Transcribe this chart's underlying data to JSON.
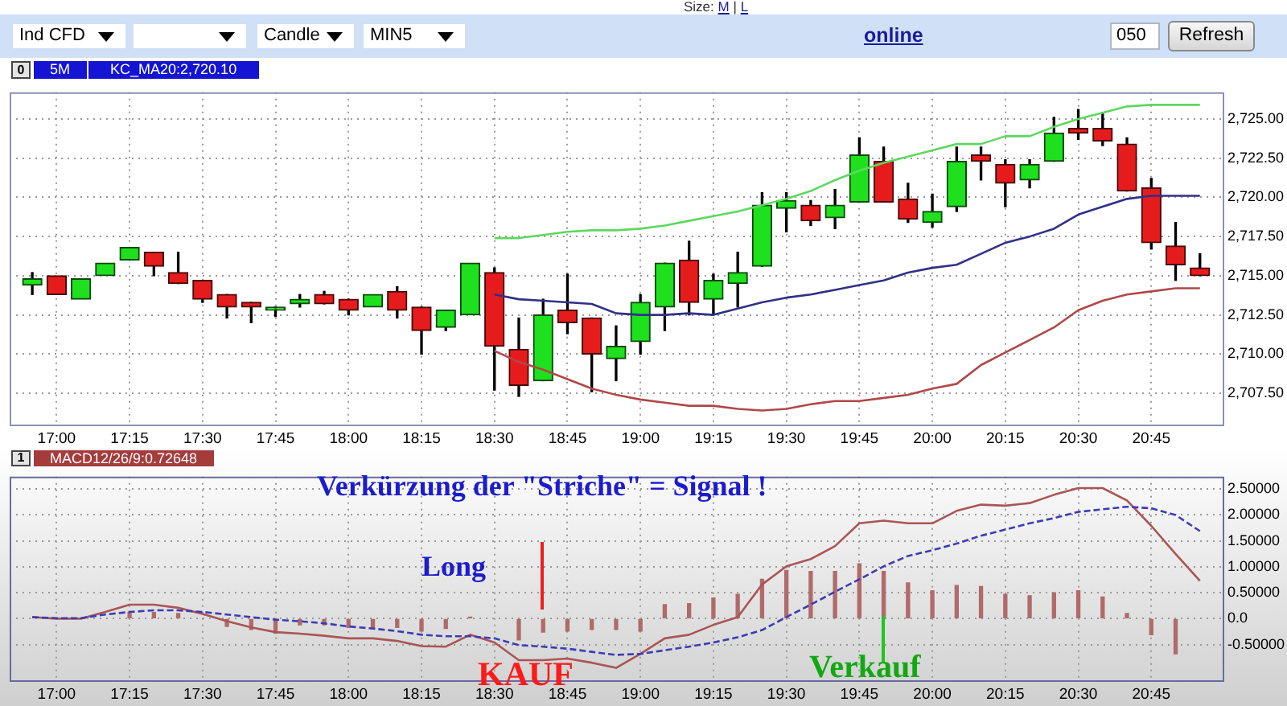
{
  "chart_data": [
    {
      "type": "other",
      "annotations": [
        "Size:",
        "M",
        "|",
        "L",
        "Ind CFD",
        "Candle",
        "MIN5",
        "online",
        "050",
        "Refresh"
      ]
    },
    {
      "type": "candlestick",
      "title": "5M",
      "subtitle": "KC_MA20:2,720.10",
      "annotations": [
        "0"
      ],
      "categories": [
        null,
        "17:00",
        null,
        null,
        "17:15",
        null,
        null,
        "17:30",
        null,
        null,
        "17:45",
        null,
        null,
        "18:00",
        null,
        null,
        "18:15",
        null,
        null,
        "18:30",
        null,
        null,
        "18:45",
        null,
        null,
        "19:00",
        null,
        null,
        "19:15",
        null,
        null,
        "19:30",
        null,
        null,
        "19:45",
        null,
        null,
        "20:00",
        null,
        null,
        "20:15",
        null,
        null,
        "20:30",
        null,
        null,
        "20:45",
        null,
        null
      ],
      "ohlc": [
        [
          2714.4,
          2715.2,
          2713.8,
          2714.8
        ],
        [
          2715.0,
          2715.0,
          2713.8,
          2713.8
        ],
        [
          2713.5,
          2714.8,
          2713.5,
          2714.8
        ],
        [
          2715.0,
          2715.8,
          2715.0,
          2715.8
        ],
        [
          2716.0,
          2716.8,
          2716.0,
          2716.8
        ],
        [
          2716.5,
          2716.5,
          2715.0,
          2715.6
        ],
        [
          2715.2,
          2716.5,
          2714.5,
          2714.5
        ],
        [
          2714.7,
          2714.7,
          2713.3,
          2713.5
        ],
        [
          2713.8,
          2713.8,
          2712.3,
          2713.0
        ],
        [
          2713.3,
          2713.3,
          2712.0,
          2713.0
        ],
        [
          2712.8,
          2713.0,
          2712.4,
          2713.0
        ],
        [
          2713.2,
          2713.8,
          2713.0,
          2713.5
        ],
        [
          2713.8,
          2714.0,
          2713.2,
          2713.2
        ],
        [
          2713.5,
          2713.5,
          2712.5,
          2712.8
        ],
        [
          2713.0,
          2713.8,
          2713.0,
          2713.8
        ],
        [
          2714.0,
          2714.3,
          2712.3,
          2712.8
        ],
        [
          2713.0,
          2713.0,
          2710.0,
          2711.5
        ],
        [
          2711.7,
          2712.8,
          2711.5,
          2712.8
        ],
        [
          2712.5,
          2715.8,
          2712.5,
          2715.8
        ],
        [
          2715.2,
          2715.5,
          2707.7,
          2710.5
        ],
        [
          2710.3,
          2712.3,
          2707.3,
          2708.0
        ],
        [
          2708.3,
          2713.5,
          2708.3,
          2712.5
        ],
        [
          2712.8,
          2715.1,
          2711.3,
          2712.0
        ],
        [
          2712.3,
          2712.3,
          2707.6,
          2710.0
        ],
        [
          2709.7,
          2711.8,
          2708.3,
          2710.5
        ],
        [
          2710.8,
          2713.8,
          2710.0,
          2713.3
        ],
        [
          2713.0,
          2715.8,
          2711.5,
          2715.8
        ],
        [
          2716.0,
          2717.2,
          2712.5,
          2713.3
        ],
        [
          2713.5,
          2715.1,
          2712.5,
          2714.7
        ],
        [
          2714.5,
          2716.5,
          2713.0,
          2715.2
        ],
        [
          2715.6,
          2720.3,
          2715.6,
          2719.5
        ],
        [
          2719.3,
          2720.3,
          2717.8,
          2719.8
        ],
        [
          2719.5,
          2719.8,
          2718.2,
          2718.5
        ],
        [
          2718.7,
          2720.5,
          2718.0,
          2719.5
        ],
        [
          2719.7,
          2723.8,
          2719.7,
          2722.7
        ],
        [
          2722.3,
          2723.2,
          2719.7,
          2719.7
        ],
        [
          2719.9,
          2720.9,
          2718.4,
          2718.6
        ],
        [
          2718.4,
          2720.2,
          2718.1,
          2719.1
        ],
        [
          2719.4,
          2723.2,
          2719.1,
          2722.3
        ],
        [
          2722.7,
          2723.2,
          2721.1,
          2722.3
        ],
        [
          2722.1,
          2722.4,
          2719.4,
          2720.9
        ],
        [
          2721.1,
          2722.4,
          2720.6,
          2722.1
        ],
        [
          2722.3,
          2725.1,
          2722.3,
          2724.1
        ],
        [
          2724.4,
          2725.6,
          2723.7,
          2724.1
        ],
        [
          2724.4,
          2725.4,
          2723.3,
          2723.6
        ],
        [
          2723.4,
          2723.8,
          2720.4,
          2720.4
        ],
        [
          2720.6,
          2721.2,
          2716.7,
          2717.1
        ],
        [
          2716.9,
          2718.4,
          2714.7,
          2715.7
        ],
        [
          2715.5,
          2716.4,
          2715.0,
          2715.0
        ]
      ],
      "series": [
        {
          "type": "line",
          "color": "#5ed85e",
          "values": [
            null,
            null,
            null,
            null,
            null,
            null,
            null,
            null,
            null,
            null,
            null,
            null,
            null,
            null,
            null,
            null,
            null,
            null,
            null,
            2717.4,
            2717.4,
            2717.6,
            2717.8,
            2717.9,
            2717.9,
            2718.0,
            2718.2,
            2718.5,
            2718.8,
            2719.1,
            2719.5,
            2719.9,
            2720.4,
            2721.1,
            2721.7,
            2722.2,
            2722.6,
            2723.0,
            2723.4,
            2723.4,
            2723.9,
            2723.9,
            2724.5,
            2725.0,
            2725.4,
            2725.8,
            2725.9,
            2725.9,
            2725.9
          ]
        },
        {
          "type": "line",
          "color": "#303088",
          "values": [
            null,
            null,
            null,
            null,
            null,
            null,
            null,
            null,
            null,
            null,
            null,
            null,
            null,
            null,
            null,
            null,
            null,
            null,
            null,
            2713.8,
            2713.5,
            2713.4,
            2713.3,
            2713.2,
            2712.6,
            2712.5,
            2712.5,
            2712.6,
            2712.5,
            2712.9,
            2713.3,
            2713.6,
            2713.8,
            2714.1,
            2714.4,
            2714.7,
            2715.2,
            2715.5,
            2715.7,
            2716.4,
            2717.1,
            2717.5,
            2718.0,
            2718.9,
            2719.4,
            2719.9,
            2720.1,
            2720.1,
            2720.1
          ]
        },
        {
          "type": "line",
          "color": "#b04848",
          "values": [
            null,
            null,
            null,
            null,
            null,
            null,
            null,
            null,
            null,
            null,
            null,
            null,
            null,
            null,
            null,
            null,
            null,
            null,
            null,
            2710.2,
            2709.5,
            2709.0,
            2708.4,
            2707.8,
            2707.4,
            2707.1,
            2706.9,
            2706.7,
            2706.7,
            2706.5,
            2706.4,
            2706.5,
            2706.8,
            2707.0,
            2707.0,
            2707.2,
            2707.4,
            2707.8,
            2708.1,
            2709.3,
            2710.1,
            2710.9,
            2711.7,
            2712.8,
            2713.4,
            2713.8,
            2714.0,
            2714.2,
            2714.2
          ]
        }
      ],
      "ylim": [
        2705.4,
        2726.7
      ],
      "yticks": [
        {
          "value": 2707.5,
          "label": "2,707.50"
        },
        {
          "value": 2710,
          "label": "2,710.00"
        },
        {
          "value": 2712.5,
          "label": "2,712.50"
        },
        {
          "value": 2715,
          "label": "2,715.00"
        },
        {
          "value": 2717.5,
          "label": "2,717.50"
        },
        {
          "value": 2720,
          "label": "2,720.00"
        },
        {
          "value": 2722.5,
          "label": "2,722.50"
        },
        {
          "value": 2725,
          "label": "2,725.00"
        }
      ],
      "grid": true
    },
    {
      "type": "line",
      "title": "MACD12/26/9:0.72648",
      "annotations": [
        "1",
        "Verkürzung der \"Striche\" = Signal !",
        "Long",
        "KAUF",
        "Verkauf"
      ],
      "categories": [
        null,
        "17:00",
        null,
        null,
        "17:15",
        null,
        null,
        "17:30",
        null,
        null,
        "17:45",
        null,
        null,
        "18:00",
        null,
        null,
        "18:15",
        null,
        null,
        "18:30",
        null,
        null,
        "18:45",
        null,
        null,
        "19:00",
        null,
        null,
        "19:15",
        null,
        null,
        "19:30",
        null,
        null,
        "19:45",
        null,
        null,
        "20:00",
        null,
        null,
        "20:15",
        null,
        null,
        "20:30",
        null,
        null,
        "20:45",
        null,
        null
      ],
      "series": [
        {
          "color": "#aa5555",
          "values": [
            0.03,
            0.0,
            0.0,
            0.13,
            0.27,
            0.27,
            0.21,
            0.09,
            -0.05,
            -0.17,
            -0.26,
            -0.29,
            -0.33,
            -0.38,
            -0.38,
            -0.43,
            -0.53,
            -0.54,
            -0.31,
            -0.46,
            -0.8,
            -0.8,
            -0.77,
            -0.85,
            -0.95,
            -0.68,
            -0.38,
            -0.31,
            -0.12,
            0.03,
            0.66,
            1.01,
            1.15,
            1.4,
            1.84,
            1.89,
            1.84,
            1.84,
            2.08,
            2.2,
            2.18,
            2.23,
            2.39,
            2.52,
            2.52,
            2.28,
            1.79,
            1.25,
            0.73
          ]
        },
        {
          "color": "#3c3cb4",
          "line_style": "dashed",
          "values": [
            0.03,
            0.01,
            0.01,
            0.08,
            0.13,
            0.16,
            0.16,
            0.13,
            0.08,
            0.03,
            -0.02,
            -0.05,
            -0.09,
            -0.15,
            -0.19,
            -0.24,
            -0.31,
            -0.34,
            -0.34,
            -0.38,
            -0.51,
            -0.54,
            -0.58,
            -0.64,
            -0.7,
            -0.68,
            -0.61,
            -0.54,
            -0.46,
            -0.36,
            -0.22,
            0.03,
            0.27,
            0.52,
            0.76,
            1.01,
            1.21,
            1.32,
            1.45,
            1.6,
            1.72,
            1.84,
            1.94,
            2.06,
            2.11,
            2.16,
            2.13,
            2.0,
            1.69
          ]
        },
        {
          "type": "bar",
          "color": "#b06a6a",
          "values": [
            null,
            null,
            null,
            null,
            0.12,
            0.12,
            0.1,
            null,
            -0.15,
            -0.21,
            -0.28,
            -0.12,
            -0.12,
            -0.17,
            -0.17,
            -0.17,
            -0.24,
            -0.19,
            0.03,
            null,
            -0.41,
            -0.26,
            -0.24,
            -0.21,
            -0.21,
            -0.24,
            0.27,
            0.29,
            0.4,
            0.47,
            0.76,
            0.93,
            0.91,
            0.91,
            1.06,
            0.91,
            0.69,
            0.54,
            0.64,
            0.62,
            0.47,
            0.44,
            0.5,
            0.54,
            0.42,
            0.1,
            -0.31,
            -0.68,
            null
          ]
        }
      ],
      "ylim": [
        -1.22,
        2.74
      ],
      "yticks": [
        {
          "value": -0.5,
          "label": "-0.50000"
        },
        {
          "value": 0,
          "label": "0.0"
        },
        {
          "value": 0.5,
          "label": "0.50000"
        },
        {
          "value": 1,
          "label": "1.00000"
        },
        {
          "value": 1.5,
          "label": "1.50000"
        },
        {
          "value": 2,
          "label": "2.00000"
        },
        {
          "value": 2.5,
          "label": "2.50000"
        }
      ],
      "grid": true
    }
  ]
}
